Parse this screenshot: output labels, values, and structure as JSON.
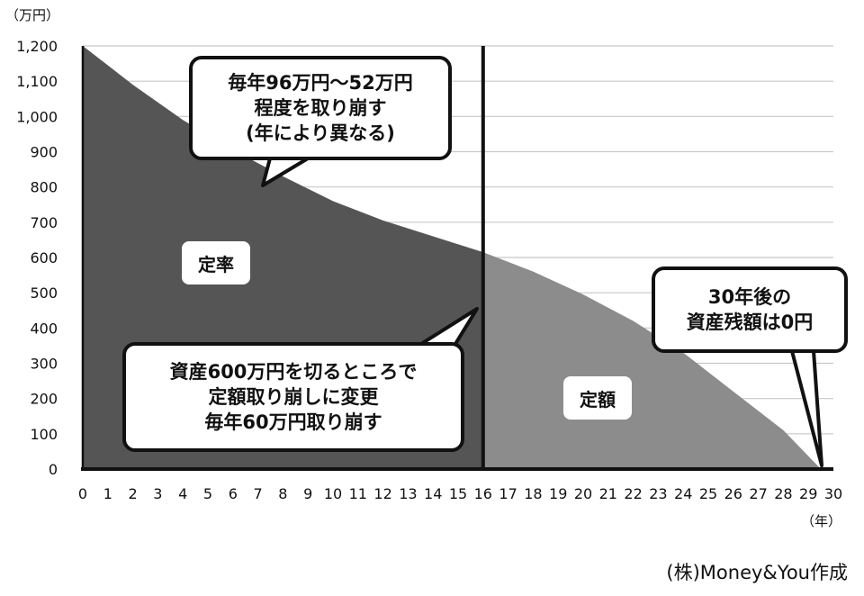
{
  "chart_data": {
    "type": "area",
    "y_unit_label": "（万円）",
    "x_unit_label": "（年）",
    "ylim": [
      0,
      1200
    ],
    "xlim": [
      0,
      30
    ],
    "y_ticks": [
      "0",
      "100",
      "200",
      "300",
      "400",
      "500",
      "600",
      "700",
      "800",
      "900",
      "1,000",
      "1,100",
      "1,200"
    ],
    "y_tick_values": [
      0,
      100,
      200,
      300,
      400,
      500,
      600,
      700,
      800,
      900,
      1000,
      1100,
      1200
    ],
    "x_ticks": [
      "0",
      "1",
      "2",
      "3",
      "4",
      "5",
      "6",
      "7",
      "8",
      "9",
      "10",
      "11",
      "12",
      "13",
      "14",
      "15",
      "16",
      "17",
      "18",
      "19",
      "20",
      "21",
      "22",
      "23",
      "24",
      "25",
      "26",
      "27",
      "28",
      "29",
      "30"
    ],
    "grid": true,
    "switch_year": 16,
    "series": [
      {
        "name": "定率",
        "color": "#555555",
        "x": [
          0,
          2,
          4,
          6,
          8,
          10,
          12,
          14,
          16
        ],
        "y": [
          1200,
          1090,
          990,
          905,
          830,
          760,
          705,
          660,
          615
        ]
      },
      {
        "name": "定額",
        "color": "#8c8c8c",
        "x": [
          16,
          18,
          20,
          22,
          24,
          26,
          28,
          29.5
        ],
        "y": [
          615,
          560,
          495,
          420,
          330,
          220,
          110,
          0
        ]
      }
    ],
    "annotations": [
      {
        "id": "top",
        "lines": [
          "毎年96万円〜52万円",
          "程度を取り崩す",
          "(年により異なる)"
        ]
      },
      {
        "id": "mid",
        "lines": [
          "資産600万円を切るところで",
          "定額取り崩しに変更",
          "毎年60万円取り崩す"
        ]
      },
      {
        "id": "right",
        "lines": [
          "30年後の",
          "資産残額は0円"
        ]
      }
    ],
    "area_labels": {
      "teiritsu": "定率",
      "teigaku": "定額"
    }
  },
  "colors": {
    "dark_area": "#555555",
    "light_area": "#8c8c8c",
    "axis": "#111111",
    "grid": "#c8c8c8"
  },
  "source": "(株)Money&You作成"
}
